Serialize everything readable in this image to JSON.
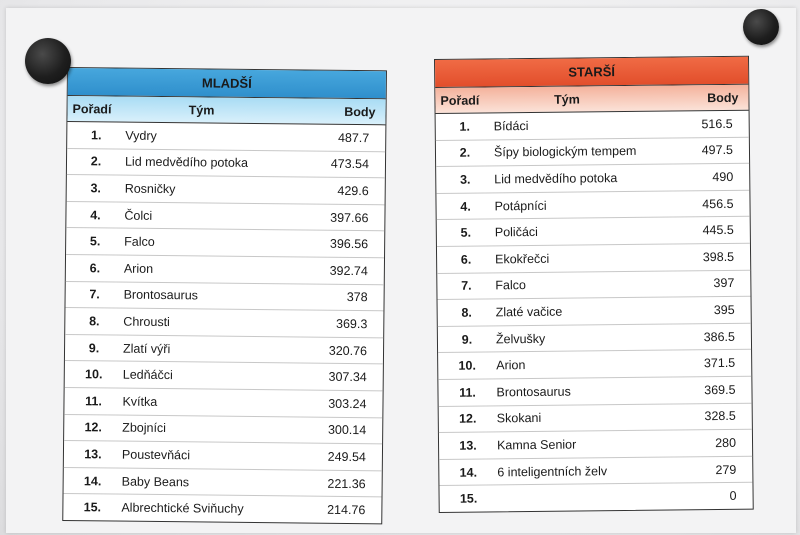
{
  "boards": {
    "left": {
      "title": "MLADŠÍ",
      "headers": {
        "rank": "Pořadí",
        "team": "Tým",
        "points": "Body"
      },
      "rows": [
        {
          "rank": "1.",
          "team": "Vydry",
          "points": "487.7"
        },
        {
          "rank": "2.",
          "team": "Lid medvědího potoka",
          "points": "473.54"
        },
        {
          "rank": "3.",
          "team": "Rosničky",
          "points": "429.6"
        },
        {
          "rank": "4.",
          "team": "Čolci",
          "points": "397.66"
        },
        {
          "rank": "5.",
          "team": "Falco",
          "points": "396.56"
        },
        {
          "rank": "6.",
          "team": "Arion",
          "points": "392.74"
        },
        {
          "rank": "7.",
          "team": "Brontosaurus",
          "points": "378"
        },
        {
          "rank": "8.",
          "team": "Chrousti",
          "points": "369.3"
        },
        {
          "rank": "9.",
          "team": "Zlatí výři",
          "points": "320.76"
        },
        {
          "rank": "10.",
          "team": "Ledňáčci",
          "points": "307.34"
        },
        {
          "rank": "11.",
          "team": "Kvítka",
          "points": "303.24"
        },
        {
          "rank": "12.",
          "team": "Zbojníci",
          "points": "300.14"
        },
        {
          "rank": "13.",
          "team": "Poustevňáci",
          "points": "249.54"
        },
        {
          "rank": "14.",
          "team": "Baby Beans",
          "points": "221.36"
        },
        {
          "rank": "15.",
          "team": "Albrechtické Sviňuchy",
          "points": "214.76"
        }
      ]
    },
    "right": {
      "title": "STARŠÍ",
      "headers": {
        "rank": "Pořadí",
        "team": "Tým",
        "points": "Body"
      },
      "rows": [
        {
          "rank": "1.",
          "team": "Bídáci",
          "points": "516.5"
        },
        {
          "rank": "2.",
          "team": "Šípy biologickým tempem",
          "points": "497.5"
        },
        {
          "rank": "3.",
          "team": "Lid medvědího potoka",
          "points": "490"
        },
        {
          "rank": "4.",
          "team": "Potápníci",
          "points": "456.5"
        },
        {
          "rank": "5.",
          "team": "Poličáci",
          "points": "445.5"
        },
        {
          "rank": "6.",
          "team": "Ekokřečci",
          "points": "398.5"
        },
        {
          "rank": "7.",
          "team": "Falco",
          "points": "397"
        },
        {
          "rank": "8.",
          "team": "Zlaté vačice",
          "points": "395"
        },
        {
          "rank": "9.",
          "team": "Želvušky",
          "points": "386.5"
        },
        {
          "rank": "10.",
          "team": "Arion",
          "points": "371.5"
        },
        {
          "rank": "11.",
          "team": "Brontosaurus",
          "points": "369.5"
        },
        {
          "rank": "12.",
          "team": "Skokani",
          "points": "328.5"
        },
        {
          "rank": "13.",
          "team": "Kamna Senior",
          "points": "280"
        },
        {
          "rank": "14.",
          "team": "6 inteligentních želv",
          "points": "279"
        },
        {
          "rank": "15.",
          "team": "",
          "points": "0"
        }
      ]
    }
  },
  "colors": {
    "left_accent": "#2f8fcc",
    "right_accent": "#e24e2b"
  }
}
